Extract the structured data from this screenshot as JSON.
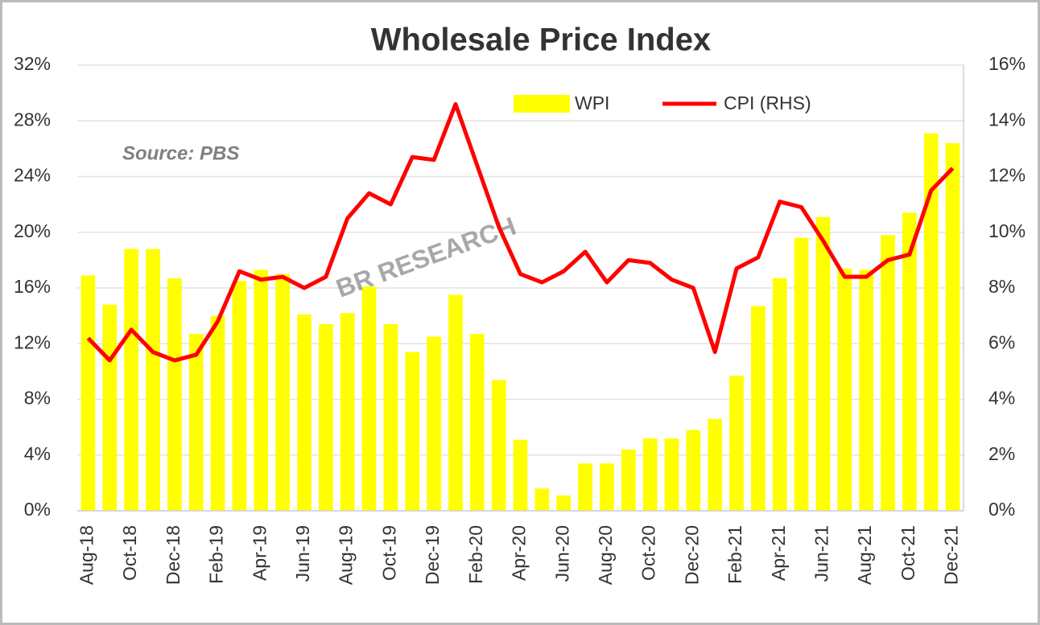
{
  "chart_data": {
    "type": "bar-line",
    "title": "Wholesale Price Index",
    "annotations": [
      "Source: PBS",
      "BR RESEARCH"
    ],
    "categories": [
      "Aug-18",
      null,
      "Oct-18",
      null,
      "Dec-18",
      null,
      "Feb-19",
      null,
      "Apr-19",
      null,
      "Jun-19",
      null,
      "Aug-19",
      null,
      "Oct-19",
      null,
      "Dec-19",
      null,
      "Feb-20",
      null,
      "Apr-20",
      null,
      "Jun-20",
      null,
      "Aug-20",
      null,
      "Oct-20",
      null,
      "Dec-20",
      null,
      "Feb-21",
      null,
      "Apr-21",
      null,
      "Jun-21",
      null,
      "Aug-21",
      null,
      "Oct-21",
      null,
      "Dec-21"
    ],
    "series": [
      {
        "name": "WPI",
        "type": "bar",
        "color": "#ffff00",
        "values": [
          16.9,
          14.8,
          18.8,
          18.8,
          16.7,
          12.7,
          14.0,
          16.5,
          17.3,
          17.0,
          14.1,
          13.4,
          14.2,
          16.1,
          13.4,
          11.4,
          12.5,
          15.5,
          12.7,
          9.4,
          5.1,
          1.6,
          1.1,
          3.4,
          3.4,
          4.4,
          5.2,
          5.2,
          5.8,
          6.6,
          9.7,
          14.7,
          16.7,
          19.6,
          21.1,
          17.4,
          17.3,
          19.8,
          21.4,
          27.1,
          26.4
        ]
      },
      {
        "name": "CPI (RHS)",
        "type": "line",
        "axis": "y2",
        "color": "#ff0000",
        "values": [
          6.2,
          5.4,
          6.5,
          5.7,
          5.4,
          5.6,
          6.8,
          8.6,
          8.3,
          8.4,
          8.0,
          8.4,
          10.5,
          11.4,
          11.0,
          12.7,
          12.6,
          14.6,
          12.4,
          10.2,
          8.5,
          8.2,
          8.6,
          9.3,
          8.2,
          9.0,
          8.9,
          8.3,
          8.0,
          5.7,
          8.7,
          9.1,
          11.1,
          10.9,
          9.7,
          8.4,
          8.4,
          9.0,
          9.2,
          11.5,
          12.3
        ]
      }
    ],
    "ylim": [
      0,
      32
    ],
    "yticks": [
      {
        "value": 0,
        "label": "0%"
      },
      {
        "value": 4,
        "label": "4%"
      },
      {
        "value": 8,
        "label": "8%"
      },
      {
        "value": 12,
        "label": "12%"
      },
      {
        "value": 16,
        "label": "16%"
      },
      {
        "value": 20,
        "label": "20%"
      },
      {
        "value": 24,
        "label": "24%"
      },
      {
        "value": 28,
        "label": "28%"
      },
      {
        "value": 32,
        "label": "32%"
      }
    ],
    "y2lim": [
      0,
      16
    ],
    "y2ticks": [
      {
        "value": 0,
        "label": "0%"
      },
      {
        "value": 2,
        "label": "2%"
      },
      {
        "value": 4,
        "label": "4%"
      },
      {
        "value": 6,
        "label": "6%"
      },
      {
        "value": 8,
        "label": "8%"
      },
      {
        "value": 10,
        "label": "10%"
      },
      {
        "value": 12,
        "label": "12%"
      },
      {
        "value": 14,
        "label": "14%"
      },
      {
        "value": 16,
        "label": "16%"
      }
    ],
    "grid": true,
    "legend": "top"
  }
}
